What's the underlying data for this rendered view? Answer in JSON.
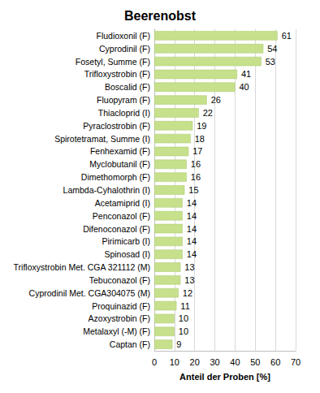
{
  "chart_data": {
    "type": "bar",
    "title": "Beerenobst",
    "orientation": "horizontal",
    "xlabel": "Anteil der Proben [%]",
    "categories": [
      "Fludioxonil (F)",
      "Cyprodinil (F)",
      "Fosetyl, Summe (F)",
      "Trifloxystrobin (F)",
      "Boscalid (F)",
      "Fluopyram (F)",
      "Thiacloprid (I)",
      "Pyraclostrobin (F)",
      "Spirotetramat, Summe (I)",
      "Fenhexamid (F)",
      "Myclobutanil (F)",
      "Dimethomorph (F)",
      "Lambda-Cyhalothrin (I)",
      "Acetamiprid (I)",
      "Penconazol (F)",
      "Difenoconazol (F)",
      "Pirimicarb (I)",
      "Spinosad (I)",
      "Trifloxystrobin Met. CGA 321112 (M)",
      "Tebuconazol (F)",
      "Cyprodinil Met. CGA304075 (M)",
      "Proquinazid (F)",
      "Azoxystrobin (F)",
      "Metalaxyl (-M) (F)",
      "Captan (F)"
    ],
    "values": [
      61,
      54,
      53,
      41,
      40,
      26,
      22,
      19,
      18,
      17,
      16,
      16,
      15,
      14,
      14,
      14,
      14,
      14,
      13,
      13,
      12,
      11,
      10,
      10,
      9
    ],
    "color": "#c6e08c",
    "xlim": [
      0,
      70
    ],
    "xticks": [
      0,
      10,
      20,
      30,
      40,
      50,
      60,
      70
    ],
    "grid": true,
    "data_labels": true
  }
}
